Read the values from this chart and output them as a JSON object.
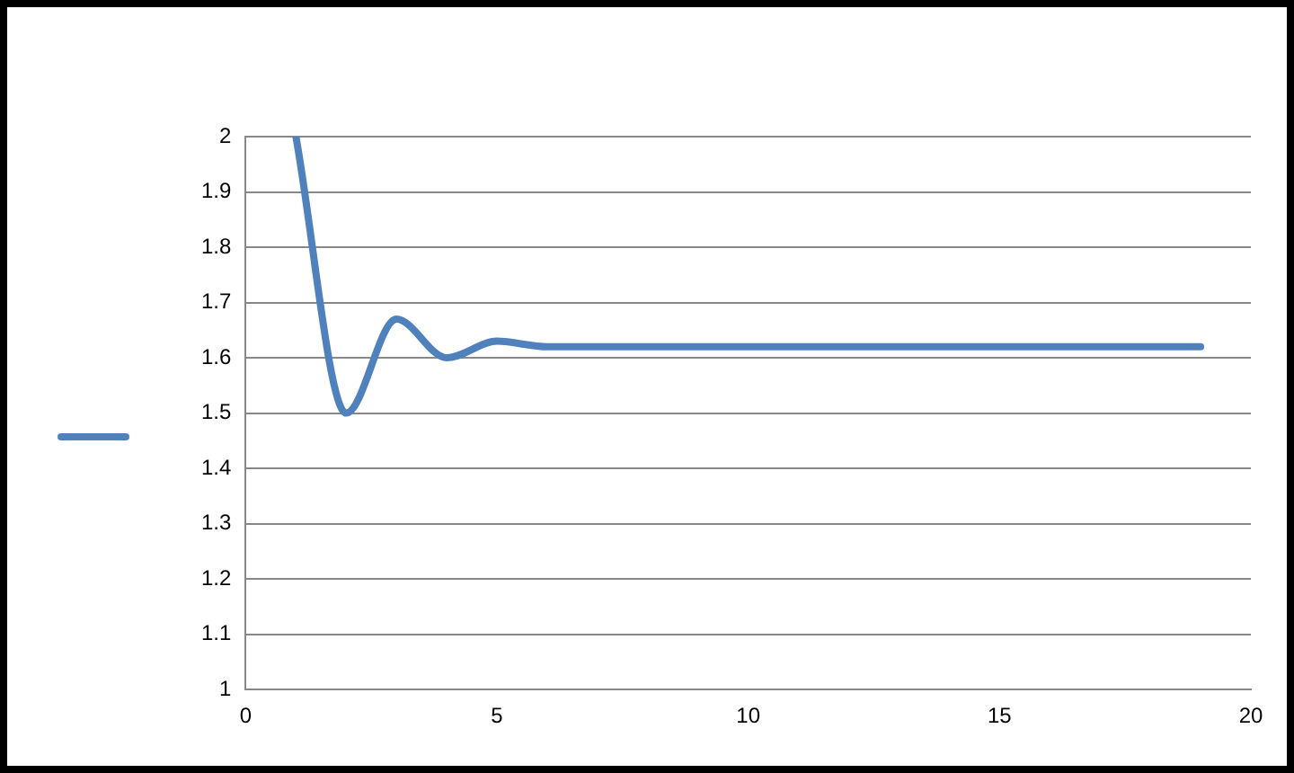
{
  "chart_data": {
    "type": "line",
    "x": [
      1,
      2,
      3,
      4,
      5,
      6,
      7,
      8,
      9,
      10,
      11,
      12,
      13,
      14,
      15,
      16,
      17,
      18,
      19
    ],
    "series": [
      {
        "color": "#4f81bd",
        "values": [
          2,
          1.5,
          1.67,
          1.6,
          1.63,
          1.62,
          1.62,
          1.62,
          1.62,
          1.62,
          1.62,
          1.62,
          1.62,
          1.62,
          1.62,
          1.62,
          1.62,
          1.62,
          1.62
        ]
      }
    ],
    "xlim": [
      0,
      20
    ],
    "xticks": [
      0,
      5,
      10,
      15,
      20
    ],
    "ylim": [
      1,
      2
    ],
    "yticks": [
      1,
      1.1,
      1.2,
      1.3,
      1.4,
      1.5,
      1.6,
      1.7,
      1.8,
      1.9,
      2
    ],
    "grid": "y",
    "marker": "none",
    "line_style": "solid"
  }
}
